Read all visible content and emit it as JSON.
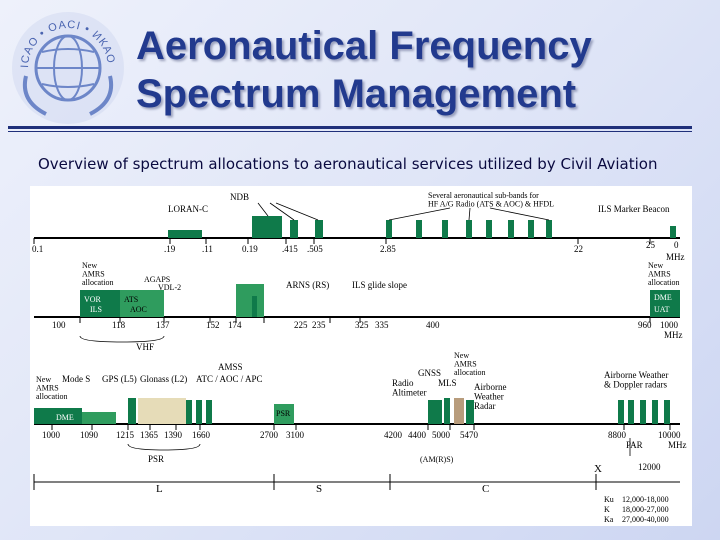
{
  "slide": {
    "title_line1": "Aeronautical Frequency",
    "title_line2": "Spectrum Management",
    "subtitle": "Overview of spectrum allocations to aeronautical services utilized by Civil Aviation"
  },
  "colors": {
    "title": "#223a8e",
    "band_dark": "#0f7a4a",
    "band_light": "#2f9c5e",
    "chart_bg": "#ffffff"
  },
  "logo": {
    "text": "ICAO • OACI • ИКАО"
  },
  "chart": {
    "row1": {
      "ticks": [
        "0.1",
        ".19",
        ".11",
        "0.19",
        ".415",
        ".505",
        "2.85",
        "22",
        "25",
        "0"
      ],
      "unit": "MHz",
      "labels": {
        "loran": "LORAN-C",
        "ndb": "NDB",
        "hf": "Several aeronautical sub-bands for\nHF A/G Radio (ATS & AOC) & HFDL",
        "marker": "ILS Marker Beacon"
      }
    },
    "row2": {
      "ticks": [
        "100",
        "118",
        "137",
        "152",
        "174",
        "225",
        "235",
        "325",
        "335",
        "400",
        "960",
        "1000"
      ],
      "unit": "MHz",
      "labels": {
        "new_left": "New\nAMRS\nallocation",
        "agaps": "AGAPS",
        "vdl2": "VDL-2",
        "vor": "VOR",
        "ils": "ILS",
        "ats": "ATS",
        "aoc": "AOC",
        "arns": "ARNS (RS)",
        "glideslope": "ILS glide slope",
        "vhf": "VHF",
        "new_right": "New\nAMRS\nallocation",
        "dme": "DME",
        "uat": "UAT"
      }
    },
    "row3": {
      "ticks": [
        "1000",
        "1090",
        "1215",
        "1365",
        "1390",
        "1660",
        "2700",
        "3100",
        "4200",
        "4400",
        "5000",
        "5470",
        "8800",
        "10000"
      ],
      "unit": "MHz",
      "labels": {
        "new_amrs": "New\nAMRS\nallocation",
        "modes": "Mode S",
        "gps": "GPS (L5)",
        "glonass": "Glonass (L2)",
        "amss": "AMSS",
        "atc": "ATC / AOC / APC",
        "gnss": "GNSS",
        "new_amrs2": "New\nAMRS\nallocation",
        "radio_alt": "Radio\nAltimeter",
        "mls": "MLS",
        "airborne": "Airborne\nWeather\nRadar",
        "airborne_weather": "Airborne Weather\n& Doppler radars",
        "dme": "DME",
        "psr_band": "PSR",
        "psr": "PSR",
        "amrs": "(AM(R)S)",
        "par": "PAR",
        "x": "X",
        "x_val": "12000"
      }
    },
    "bands_legend": {
      "l": "L",
      "s": "S",
      "c": "C",
      "ku": "Ku",
      "ku_val": "12,000-18,000",
      "k": "K",
      "k_val": "18,000-27,000",
      "ka": "Ka",
      "ka_val": "27,000-40,000"
    }
  }
}
